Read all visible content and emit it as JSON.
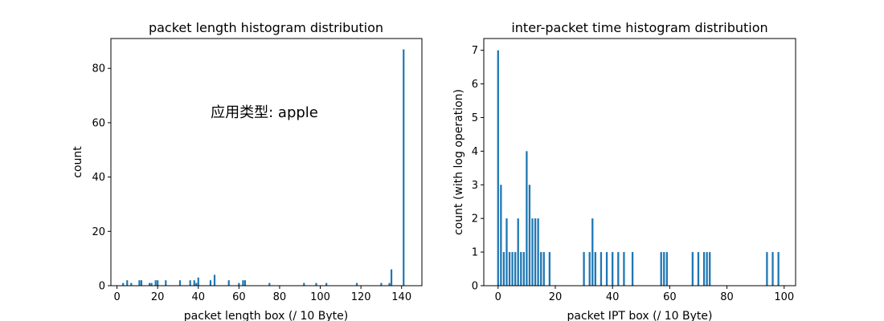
{
  "chart_data": [
    {
      "type": "bar",
      "title": "packet length histogram distribution",
      "xlabel": "packet length box (/ 10 Byte)",
      "ylabel": "count",
      "xlim": [
        -3,
        150
      ],
      "ylim": [
        0,
        91
      ],
      "xticks": [
        0,
        20,
        40,
        60,
        80,
        100,
        120,
        140
      ],
      "yticks": [
        0,
        20,
        40,
        60,
        80
      ],
      "annotation": "应用类型: apple",
      "bar_color": "#1f77b4",
      "bars": [
        {
          "x": 3,
          "y": 1
        },
        {
          "x": 5,
          "y": 2
        },
        {
          "x": 7,
          "y": 1
        },
        {
          "x": 11,
          "y": 2
        },
        {
          "x": 12,
          "y": 2
        },
        {
          "x": 16,
          "y": 1
        },
        {
          "x": 17,
          "y": 1
        },
        {
          "x": 19,
          "y": 2
        },
        {
          "x": 20,
          "y": 2
        },
        {
          "x": 24,
          "y": 2
        },
        {
          "x": 31,
          "y": 2
        },
        {
          "x": 36,
          "y": 2
        },
        {
          "x": 38,
          "y": 2
        },
        {
          "x": 39,
          "y": 1
        },
        {
          "x": 40,
          "y": 3
        },
        {
          "x": 46,
          "y": 2
        },
        {
          "x": 48,
          "y": 4
        },
        {
          "x": 55,
          "y": 2
        },
        {
          "x": 60,
          "y": 1
        },
        {
          "x": 62,
          "y": 2
        },
        {
          "x": 63,
          "y": 2
        },
        {
          "x": 75,
          "y": 1
        },
        {
          "x": 92,
          "y": 1
        },
        {
          "x": 98,
          "y": 1
        },
        {
          "x": 103,
          "y": 1
        },
        {
          "x": 118,
          "y": 1
        },
        {
          "x": 130,
          "y": 1
        },
        {
          "x": 134,
          "y": 1
        },
        {
          "x": 135,
          "y": 6
        },
        {
          "x": 141,
          "y": 87
        }
      ]
    },
    {
      "type": "bar",
      "title": "inter-packet time histogram distribution",
      "xlabel": "packet IPT box (/ 10 Byte)",
      "ylabel": "count (with log operation)",
      "xlim": [
        -5,
        104
      ],
      "ylim": [
        0,
        7.35
      ],
      "xticks": [
        0,
        20,
        40,
        60,
        80,
        100
      ],
      "yticks": [
        0,
        1,
        2,
        3,
        4,
        5,
        6,
        7
      ],
      "bar_color": "#1f77b4",
      "bars": [
        {
          "x": 0,
          "y": 7
        },
        {
          "x": 1,
          "y": 3
        },
        {
          "x": 2,
          "y": 1
        },
        {
          "x": 3,
          "y": 2
        },
        {
          "x": 4,
          "y": 1
        },
        {
          "x": 5,
          "y": 1
        },
        {
          "x": 6,
          "y": 1
        },
        {
          "x": 7,
          "y": 2
        },
        {
          "x": 8,
          "y": 1
        },
        {
          "x": 9,
          "y": 1
        },
        {
          "x": 10,
          "y": 4
        },
        {
          "x": 11,
          "y": 3
        },
        {
          "x": 12,
          "y": 2
        },
        {
          "x": 13,
          "y": 2
        },
        {
          "x": 14,
          "y": 2
        },
        {
          "x": 15,
          "y": 1
        },
        {
          "x": 16,
          "y": 1
        },
        {
          "x": 18,
          "y": 1
        },
        {
          "x": 30,
          "y": 1
        },
        {
          "x": 32,
          "y": 1
        },
        {
          "x": 33,
          "y": 2
        },
        {
          "x": 34,
          "y": 1
        },
        {
          "x": 36,
          "y": 1
        },
        {
          "x": 38,
          "y": 1
        },
        {
          "x": 40,
          "y": 1
        },
        {
          "x": 42,
          "y": 1
        },
        {
          "x": 44,
          "y": 1
        },
        {
          "x": 47,
          "y": 1
        },
        {
          "x": 57,
          "y": 1
        },
        {
          "x": 58,
          "y": 1
        },
        {
          "x": 59,
          "y": 1
        },
        {
          "x": 68,
          "y": 1
        },
        {
          "x": 70,
          "y": 1
        },
        {
          "x": 72,
          "y": 1
        },
        {
          "x": 73,
          "y": 1
        },
        {
          "x": 74,
          "y": 1
        },
        {
          "x": 94,
          "y": 1
        },
        {
          "x": 96,
          "y": 1
        },
        {
          "x": 98,
          "y": 1
        }
      ]
    }
  ]
}
